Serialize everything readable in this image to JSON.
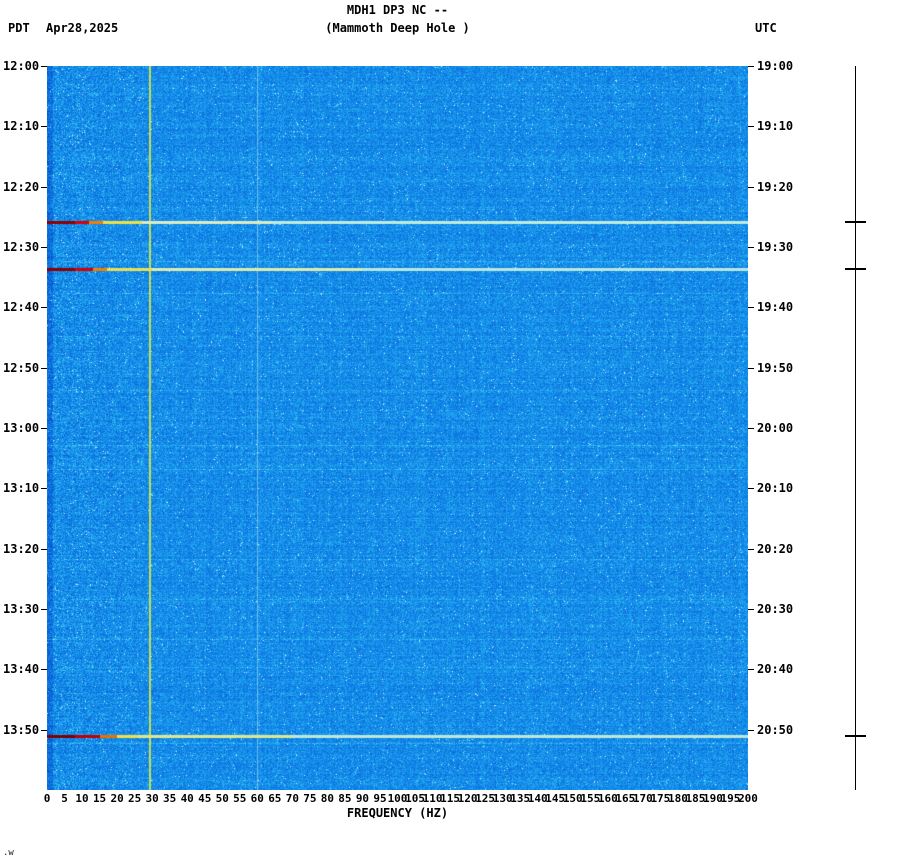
{
  "header": {
    "title_line1": "MDH1 DP3 NC --",
    "title_line2": "(Mammoth Deep Hole )",
    "left_tz": "PDT",
    "date": "Apr28,2025",
    "right_tz": "UTC"
  },
  "footer": {
    "watermark": ".w"
  },
  "chart_data": {
    "type": "heatmap",
    "subtype": "seismic-spectrogram",
    "title": "MDH1 DP3 NC -- (Mammoth Deep Hole )",
    "station": "MDH1 DP3 NC --",
    "station_description": "Mammoth Deep Hole",
    "date": "Apr28,2025",
    "xlabel": "FREQUENCY (HZ)",
    "x_range_hz": [
      0,
      200
    ],
    "x_tick_step_hz": 5,
    "x_tick_labels": [
      "0",
      "5",
      "10",
      "15",
      "20",
      "25",
      "30",
      "35",
      "40",
      "45",
      "50",
      "55",
      "60",
      "65",
      "70",
      "75",
      "80",
      "85",
      "90",
      "95",
      "100",
      "105",
      "110",
      "115",
      "120",
      "125",
      "130",
      "135",
      "140",
      "145",
      "150",
      "155",
      "160",
      "165",
      "170",
      "175",
      "180",
      "185",
      "190",
      "195",
      "200"
    ],
    "left_axis_timezone": "PDT",
    "right_axis_timezone": "UTC",
    "time_start_left": "12:00",
    "time_end_left": "14:00",
    "time_start_right": "19:00",
    "time_end_right": "21:00",
    "time_span_minutes": 120,
    "time_tick_interval_minutes": 10,
    "left_time_ticks": [
      "12:00",
      "12:10",
      "12:20",
      "12:30",
      "12:40",
      "12:50",
      "13:00",
      "13:10",
      "13:20",
      "13:30",
      "13:40",
      "13:50"
    ],
    "right_time_ticks": [
      "19:00",
      "19:10",
      "19:20",
      "19:30",
      "19:40",
      "19:50",
      "20:00",
      "20:10",
      "20:20",
      "20:30",
      "20:40",
      "20:50"
    ],
    "grid": false,
    "legend": "none",
    "background_base_color": "#0f7ce8",
    "palette_stops": [
      [
        0.0,
        "#0850c8"
      ],
      [
        0.35,
        "#0e7ce6"
      ],
      [
        0.55,
        "#1898ec"
      ],
      [
        0.78,
        "#3cc8f4"
      ],
      [
        1.0,
        "#d0f4ff"
      ]
    ],
    "vertical_lines": [
      {
        "freq_hz": 29.5,
        "color": "#cce44c",
        "width": 2,
        "opacity": 0.95,
        "note": "persistent narrowband line"
      },
      {
        "freq_hz": 60,
        "color": "#a8e0f0",
        "width": 1,
        "opacity": 0.55,
        "note": "faint 60 Hz line"
      }
    ],
    "events": [
      {
        "time_pdt": "12:26",
        "time_utc": "19:26",
        "minutes_from_start": 25.8,
        "description": "broadband event, strongest below 25 Hz",
        "segments": [
          [
            0,
            8,
            "#8c0000"
          ],
          [
            8,
            12,
            "#d80000"
          ],
          [
            12,
            16,
            "#f08000"
          ],
          [
            16,
            27,
            "#f0e048"
          ],
          [
            27,
            64,
            "#dcecc4"
          ],
          [
            64,
            200,
            "#c0ecdc"
          ]
        ]
      },
      {
        "time_pdt": "12:34",
        "time_utc": "19:34",
        "minutes_from_start": 33.6,
        "description": "broadband event, strongest below 30 Hz",
        "segments": [
          [
            0,
            8,
            "#8c0000"
          ],
          [
            8,
            13,
            "#d80000"
          ],
          [
            13,
            17,
            "#f08000"
          ],
          [
            17,
            30,
            "#e8e058"
          ],
          [
            30,
            90,
            "#dcecb0"
          ],
          [
            90,
            200,
            "#b8e8e0"
          ]
        ]
      },
      {
        "time_pdt": "13:51",
        "time_utc": "20:51",
        "minutes_from_start": 111.0,
        "description": "broadband event, strongest below 26 Hz",
        "segments": [
          [
            0,
            8,
            "#7c0000"
          ],
          [
            8,
            15,
            "#c00000"
          ],
          [
            15,
            20,
            "#e87000"
          ],
          [
            20,
            26,
            "#f0e048"
          ],
          [
            26,
            70,
            "#dce890"
          ],
          [
            70,
            200,
            "#bce8d8"
          ]
        ]
      }
    ]
  }
}
